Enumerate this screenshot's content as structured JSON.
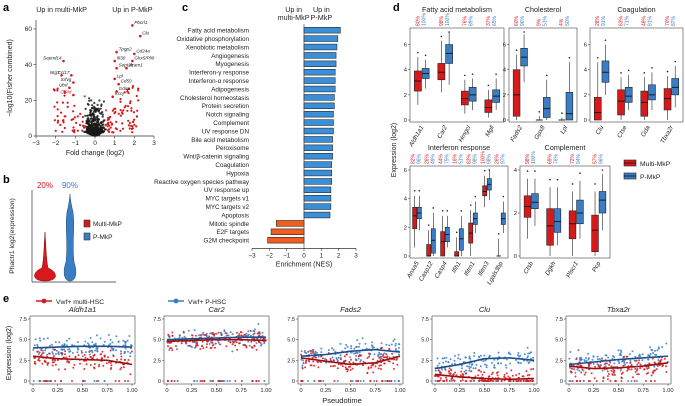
{
  "colors": {
    "red": "#d7191c",
    "blue": "#3b7dc4",
    "black": "#1a1a1a",
    "orange": "#f25c1f",
    "barblue": "#3a8fd9"
  },
  "panels": {
    "a": "a",
    "b": "b",
    "c": "c",
    "d": "d",
    "e": "e"
  },
  "chart_data": [
    {
      "id": "a",
      "type": "scatter",
      "title": "",
      "header_left": "Up in multi-MkP",
      "header_right": "Up in P-MkP",
      "xlabel": "Fold change (log2)",
      "ylabel": "−log10(Fisher combined)",
      "xlim": [
        -3,
        3
      ],
      "ylim": [
        0,
        65
      ],
      "xticks": [
        "−3",
        "−2",
        "−1",
        "0",
        "1",
        "2",
        "3"
      ],
      "yticks": [
        "0",
        "20",
        "40",
        "60"
      ],
      "gene_labels": [
        {
          "text": "Pbcrl1",
          "x": 1.9,
          "y": 62,
          "color": "#1a1a1a"
        },
        {
          "text": "Clu",
          "x": 2.3,
          "y": 56,
          "color": "#1a1a1a"
        },
        {
          "text": "Cd24a",
          "x": 2.0,
          "y": 46,
          "color": "#1a1a1a"
        },
        {
          "text": "Tpgp2",
          "x": 1.1,
          "y": 47,
          "color": "#1a1a1a"
        },
        {
          "text": "Glrx5/Pli9",
          "x": 1.9,
          "y": 42,
          "color": "#1a1a1a"
        },
        {
          "text": "Ifi30",
          "x": 1.0,
          "y": 42,
          "color": "#1a1a1a"
        },
        {
          "text": "Sept2b",
          "x": 1.1,
          "y": 38,
          "color": "#1a1a1a"
        },
        {
          "text": "Vcam1",
          "x": 1.6,
          "y": 38,
          "color": "#1a1a1a"
        },
        {
          "text": "Sepnd14",
          "x": -1.6,
          "y": 42,
          "color": "#1a1a1a"
        },
        {
          "text": "Ntg7",
          "x": -1.7,
          "y": 34,
          "color": "#1a1a1a"
        },
        {
          "text": "Ccl17",
          "x": -1.2,
          "y": 34,
          "color": "#1a1a1a"
        },
        {
          "text": "Srfvg",
          "x": -1.1,
          "y": 30,
          "color": "#1a1a1a"
        },
        {
          "text": "Ubd",
          "x": -1.3,
          "y": 27,
          "color": "#1a1a1a"
        },
        {
          "text": "Cd4d",
          "x": -1.1,
          "y": 23,
          "color": "#d7191c"
        },
        {
          "text": "Lpl",
          "x": 1.0,
          "y": 32,
          "color": "#1a1a1a"
        },
        {
          "text": "Cd59",
          "x": 1.2,
          "y": 29,
          "color": "#1a1a1a"
        },
        {
          "text": "Gdc3",
          "x": 1.1,
          "y": 25,
          "color": "#1a1a1a"
        },
        {
          "text": "Kcnj",
          "x": 0.9,
          "y": 22,
          "color": "#1a1a1a"
        }
      ],
      "point_groups": [
        {
          "name": "not significant",
          "color": "#1a1a1a"
        },
        {
          "name": "significant",
          "color": "#d7191c"
        }
      ]
    },
    {
      "id": "b",
      "type": "violin",
      "title": "",
      "ylabel": "Phactr1 log2(expression)",
      "groups": [
        {
          "name": "Multi-MkP",
          "percent_label": "20%",
          "color": "#d7191c"
        },
        {
          "name": "P-MkP",
          "percent_label": "90%",
          "color": "#3b7dc4"
        }
      ],
      "legend": [
        "Multi-MkP",
        "P-MkP"
      ]
    },
    {
      "id": "c",
      "type": "bar",
      "title": "",
      "header_left": "Up in multi-MkP",
      "header_right": "Up in P-MkP",
      "xlabel": "Enrichment (NES)",
      "xlim": [
        -3,
        3
      ],
      "xticks": [
        "−3",
        "−2",
        "−1",
        "0",
        "1",
        "2",
        "3"
      ],
      "categories": [
        "Fatty acid metabolism",
        "Oxidative phosphorylation",
        "Xenobiotic metabolism",
        "Angiogenesis",
        "Myogenesis",
        "Interferon-γ response",
        "Interferon-α response",
        "Adipogenesis",
        "Cholesterol homeostasis",
        "Protein secretion",
        "Notch signaling",
        "Complement",
        "UV response DN",
        "Bile acid metabolism",
        "Peroxisome",
        "Wnt/β-catenin signaling",
        "Coagulation",
        "Hypoxia",
        "Reactive oxygen species pathway",
        "UV response up",
        "MYC targets v1",
        "MYC targets v2",
        "Apoptosis",
        "Mitotic spindle",
        "E2F targets",
        "G2M checkpoint"
      ],
      "values": [
        2.1,
        1.95,
        1.9,
        1.85,
        1.85,
        1.8,
        1.8,
        1.8,
        1.75,
        1.75,
        1.7,
        1.7,
        1.7,
        1.65,
        1.65,
        1.65,
        1.6,
        1.6,
        1.6,
        1.55,
        1.55,
        1.55,
        1.5,
        -1.6,
        -1.9,
        -2.1
      ]
    },
    {
      "id": "d",
      "type": "box",
      "title": "",
      "ylabel": "Expression (log2)",
      "legend": [
        "Multi-MkP",
        "P-MkP"
      ],
      "groups": [
        {
          "title": "Fatty acid metabolism",
          "genes": [
            {
              "name": "Aldh1a1",
              "pct": [
                "80%",
                "100%"
              ],
              "red": [
                1.2,
                2.3,
                3.1,
                3.9,
                5.0
              ],
              "blue": [
                2.5,
                3.3,
                3.7,
                4.1,
                4.8
              ]
            },
            {
              "name": "Car2",
              "pct": [
                "98%",
                "100%"
              ],
              "red": [
                2.2,
                3.2,
                3.8,
                4.5,
                6.3
              ],
              "blue": [
                2.8,
                4.5,
                5.3,
                6.0,
                7.0
              ]
            },
            {
              "name": "Hmgcl",
              "pct": [
                "76%",
                "89%"
              ],
              "red": [
                0.5,
                1.2,
                1.7,
                2.3,
                3.2
              ],
              "blue": [
                0.8,
                1.5,
                2.0,
                2.6,
                3.3
              ]
            },
            {
              "name": "Mgll",
              "pct": [
                "37%",
                "65%"
              ],
              "red": [
                0.2,
                0.6,
                1.0,
                1.6,
                2.4
              ],
              "blue": [
                0.8,
                1.4,
                1.9,
                2.4,
                3.3
              ]
            }
          ]
        },
        {
          "title": "Cholesterol",
          "genes": [
            {
              "name": "Fads2",
              "pct": [
                "60%",
                "96%"
              ],
              "red": [
                0.0,
                0.3,
                2.0,
                4.0,
                5.2
              ],
              "blue": [
                3.0,
                4.3,
                5.0,
                5.7,
                6.8
              ]
            },
            {
              "name": "Gpx8",
              "pct": [
                "9%",
                "51%"
              ],
              "red": [
                0.0,
                0.0,
                0.0,
                0.0,
                0.3
              ],
              "blue": [
                0.0,
                0.2,
                0.9,
                1.8,
                3.2
              ]
            },
            {
              "name": "Lpl",
              "pct": [
                "4%",
                "50%"
              ],
              "red": [
                0.0,
                0.0,
                0.0,
                0.0,
                0.2
              ],
              "blue": [
                0.0,
                0.0,
                0.5,
                2.2,
                4.6
              ]
            }
          ]
        },
        {
          "title": "Coagulation",
          "genes": [
            {
              "name": "Clu",
              "pct": [
                "28%",
                "91%"
              ],
              "red": [
                0.0,
                0.0,
                0.6,
                1.8,
                4.6
              ],
              "blue": [
                2.0,
                3.0,
                3.8,
                4.7,
                6.0
              ]
            },
            {
              "name": "Ctse",
              "pct": [
                "63%",
                "71%"
              ],
              "red": [
                0.0,
                0.4,
                1.5,
                2.4,
                3.4
              ],
              "blue": [
                0.8,
                1.4,
                1.9,
                2.6,
                3.6
              ]
            },
            {
              "name": "Gda",
              "pct": [
                "48%",
                "81%"
              ],
              "red": [
                0.0,
                0.3,
                1.4,
                2.3,
                3.4
              ],
              "blue": [
                0.8,
                1.6,
                2.0,
                2.8,
                3.8
              ]
            },
            {
              "name": "Tbxa2r",
              "pct": [
                "70%",
                "87%"
              ],
              "red": [
                0.0,
                0.8,
                1.7,
                2.5,
                3.5
              ],
              "blue": [
                1.0,
                2.0,
                2.6,
                3.3,
                4.3
              ]
            }
          ]
        },
        {
          "title": "Interferon response",
          "genes": [
            {
              "name": "Anxa5",
              "pct": [
                "82%",
                "96%"
              ],
              "red": [
                0.6,
                1.9,
                2.8,
                3.4,
                4.2
              ],
              "blue": [
                1.8,
                2.6,
                3.0,
                3.4,
                4.2
              ]
            },
            {
              "name": "Casp12",
              "pct": [
                "26%",
                "49%"
              ],
              "red": [
                0.0,
                0.0,
                0.0,
                0.8,
                1.8
              ],
              "blue": [
                0.0,
                0.2,
                1.1,
                1.9,
                3.0
              ]
            },
            {
              "name": "Casp4",
              "pct": [
                "44%",
                "75%"
              ],
              "red": [
                0.0,
                0.0,
                1.0,
                1.7,
                2.8
              ],
              "blue": [
                0.6,
                1.0,
                1.5,
                2.0,
                2.8
              ]
            },
            {
              "name": "Ifih1",
              "pct": [
                "16%",
                "51%"
              ],
              "red": [
                0.0,
                0.0,
                0.0,
                0.3,
                1.3
              ],
              "blue": [
                0.0,
                0.4,
                1.2,
                1.9,
                2.8
              ]
            },
            {
              "name": "Ifitm1",
              "pct": [
                "83%",
                "98%"
              ],
              "red": [
                0.0,
                0.9,
                1.6,
                2.3,
                3.2
              ],
              "blue": [
                1.6,
                2.2,
                2.6,
                3.0,
                3.8
              ]
            },
            {
              "name": "Ifitm3",
              "pct": [
                "100%",
                "98%"
              ],
              "red": [
                3.4,
                4.2,
                4.5,
                4.9,
                5.6
              ],
              "blue": [
                3.9,
                4.6,
                5.0,
                5.4,
                6.0
              ]
            },
            {
              "name": "Lgals3bp",
              "pct": [
                "26%",
                "97%"
              ],
              "red": [
                0.0,
                0.0,
                0.0,
                0.0,
                1.2
              ],
              "blue": [
                1.6,
                2.2,
                2.6,
                3.0,
                3.8
              ]
            }
          ]
        },
        {
          "title": "Complement",
          "genes": [
            {
              "name": "Ctsb",
              "pct": [
                "98%",
                "100%"
              ],
              "red": [
                0.8,
                1.8,
                2.3,
                2.8,
                3.6
              ],
              "blue": [
                1.4,
                2.2,
                2.5,
                2.9,
                3.6
              ]
            },
            {
              "name": "Dgkh",
              "pct": [
                "69%",
                "76%"
              ],
              "red": [
                0.0,
                0.5,
                1.4,
                2.2,
                3.2
              ],
              "blue": [
                0.5,
                1.1,
                1.6,
                2.2,
                3.2
              ]
            },
            {
              "name": "Plscr1",
              "pct": [
                "72%",
                "94%"
              ],
              "red": [
                0.0,
                0.8,
                1.5,
                2.1,
                3.0
              ],
              "blue": [
                0.8,
                1.5,
                2.0,
                2.6,
                3.5
              ]
            },
            {
              "name": "Pcp",
              "pct": [
                "57%",
                "96%"
              ],
              "red": [
                0.0,
                0.2,
                1.2,
                1.9,
                3.0
              ],
              "blue": [
                1.2,
                2.0,
                2.6,
                3.0,
                3.8
              ]
            }
          ]
        }
      ]
    },
    {
      "id": "e",
      "type": "scatter",
      "title": "",
      "legend": [
        {
          "name": "Vwf+ multi-HSC",
          "color": "#d7191c"
        },
        {
          "name": "Vwf+ P-HSC",
          "color": "#3b7dc4"
        }
      ],
      "xlabel": "Pseudotime",
      "ylabel": "Expression (log2)",
      "xlim": [
        0,
        1
      ],
      "ylim": [
        0,
        7.5
      ],
      "xticks": [
        "0",
        "0.25",
        "0.50",
        "0.75",
        "1.00"
      ],
      "yticks": [
        "0",
        "2.5",
        "5.0",
        "7.5"
      ],
      "series": [
        {
          "gene": "Aldh1a1",
          "red_level": [
            3.0,
            2.7,
            2.6,
            2.5,
            2.0
          ],
          "blue_level": [
            4.0,
            4.1,
            4.2,
            4.2,
            4.1
          ]
        },
        {
          "gene": "Car2",
          "red_level": [
            4.8,
            4.9,
            5.0,
            5.0,
            4.9
          ],
          "blue_level": [
            5.0,
            5.1,
            5.2,
            5.3,
            5.3
          ]
        },
        {
          "gene": "Fads2",
          "red_level": [
            2.8,
            2.4,
            2.0,
            2.2,
            3.0
          ],
          "blue_level": [
            3.0,
            3.2,
            3.6,
            3.8,
            3.5
          ]
        },
        {
          "gene": "Clu",
          "red_level": [
            0.8,
            0.5,
            0.3,
            0.2,
            0.3
          ],
          "blue_level": [
            1.5,
            2.0,
            2.7,
            2.8,
            2.5
          ]
        },
        {
          "gene": "Tbxa2r",
          "red_level": [
            1.8,
            1.5,
            1.6,
            1.8,
            2.2
          ],
          "blue_level": [
            2.0,
            2.3,
            2.6,
            2.8,
            3.0
          ]
        }
      ]
    }
  ]
}
